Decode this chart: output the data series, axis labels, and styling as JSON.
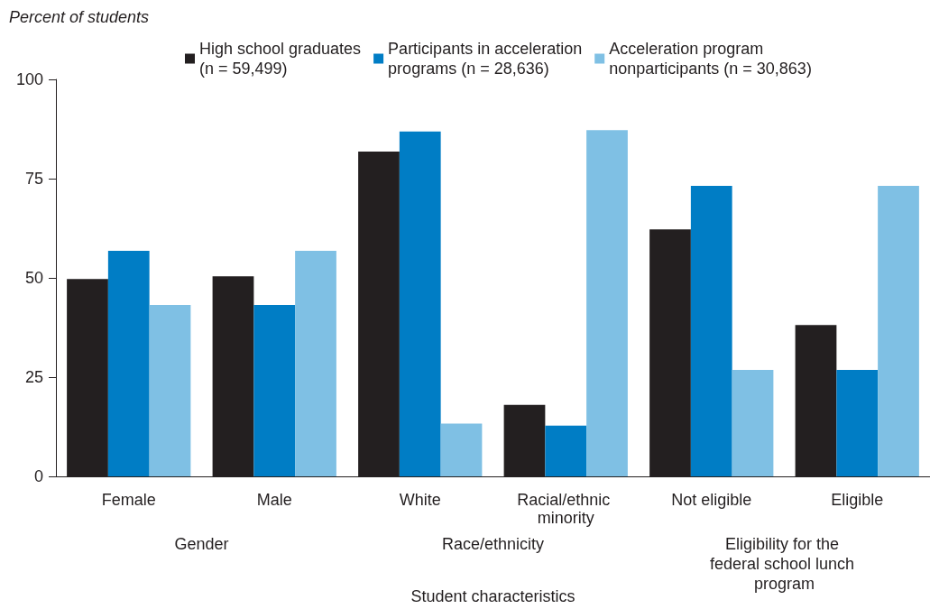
{
  "chart_data": {
    "type": "bar",
    "ylabel": "Percent of students",
    "xlabel": "Student characteristics",
    "categories": [
      "Female",
      "Male",
      "White",
      "Racial/ethnic minority",
      "Not eligible",
      "Eligible"
    ],
    "series": [
      {
        "name": "High school graduates (n = 59,499)",
        "color": "#231f20",
        "values": [
          49.7,
          50.4,
          81.8,
          18.0,
          62.2,
          38.1
        ]
      },
      {
        "name": "Participants in acceleration programs (n = 28,636)",
        "color": "#007dc5",
        "values": [
          56.8,
          43.2,
          86.9,
          12.8,
          73.2,
          26.8
        ]
      },
      {
        "name": "Acceleration program nonparticipants (n = 30,863)",
        "color": "#7fc0e4",
        "values": [
          43.2,
          56.8,
          13.3,
          87.2,
          26.8,
          73.2
        ]
      }
    ],
    "annotations": [
      "Gender",
      "Race/ethnicity",
      "Eligibility for the federal school lunch program"
    ],
    "ylim": [
      0,
      100
    ],
    "yticks": [
      0,
      25,
      50,
      75,
      100
    ],
    "grid": false,
    "legend": "top"
  }
}
